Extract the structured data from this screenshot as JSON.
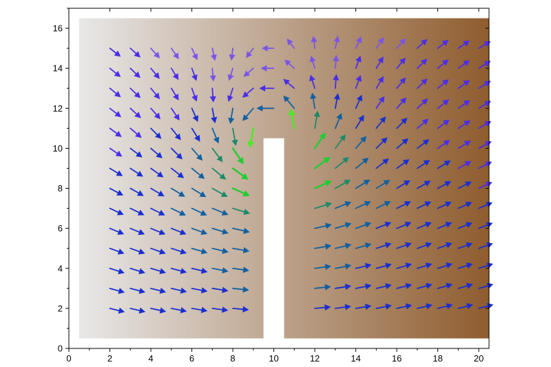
{
  "chart_data": {
    "type": "vector-field",
    "title": "",
    "xlabel": "",
    "ylabel": "",
    "xlim": [
      0,
      20.5
    ],
    "ylim": [
      0,
      17
    ],
    "x_ticks": [
      "0",
      "2",
      "4",
      "6",
      "8",
      "10",
      "12",
      "14",
      "16",
      "18",
      "20"
    ],
    "y_ticks": [
      "0",
      "2",
      "4",
      "6",
      "8",
      "10",
      "12",
      "14",
      "16"
    ],
    "x_tick_values": [
      0,
      2,
      4,
      6,
      8,
      10,
      12,
      14,
      16,
      18,
      20
    ],
    "y_tick_values": [
      0,
      2,
      4,
      6,
      8,
      10,
      12,
      14,
      16
    ],
    "grid": false,
    "domain_outline": [
      [
        0.5,
        0.5
      ],
      [
        9.5,
        0.5
      ],
      [
        9.5,
        10.5
      ],
      [
        10.5,
        10.5
      ],
      [
        10.5,
        0.5
      ],
      [
        20.5,
        0.5
      ],
      [
        20.5,
        16.5
      ],
      [
        0.5,
        16.5
      ]
    ],
    "obstacle": {
      "x": [
        9.5,
        10.5
      ],
      "y": [
        0.5,
        10.5
      ],
      "color": "#ffffff"
    },
    "background_colors": {
      "left": "#e8e8e8",
      "right": "#8f5c2e"
    },
    "vector_color_scale": [
      "#7a55e8",
      "#4a2ee8",
      "#1a2fd0",
      "#1060a0",
      "#1a8a6a",
      "#22cc33",
      "#44ee22",
      "#bbee22",
      "#ffee22",
      "#ffaa11",
      "#ff7a00",
      "#ee1111"
    ],
    "grid_x": [
      2,
      3,
      4,
      5,
      6,
      7,
      8,
      9,
      10,
      11,
      12,
      13,
      14,
      15,
      16,
      17,
      18,
      19,
      20
    ],
    "grid_y": [
      2,
      3,
      4,
      5,
      6,
      7,
      8,
      9,
      10,
      11,
      12,
      13,
      14,
      15
    ],
    "arrow_scale": 0.9
  }
}
